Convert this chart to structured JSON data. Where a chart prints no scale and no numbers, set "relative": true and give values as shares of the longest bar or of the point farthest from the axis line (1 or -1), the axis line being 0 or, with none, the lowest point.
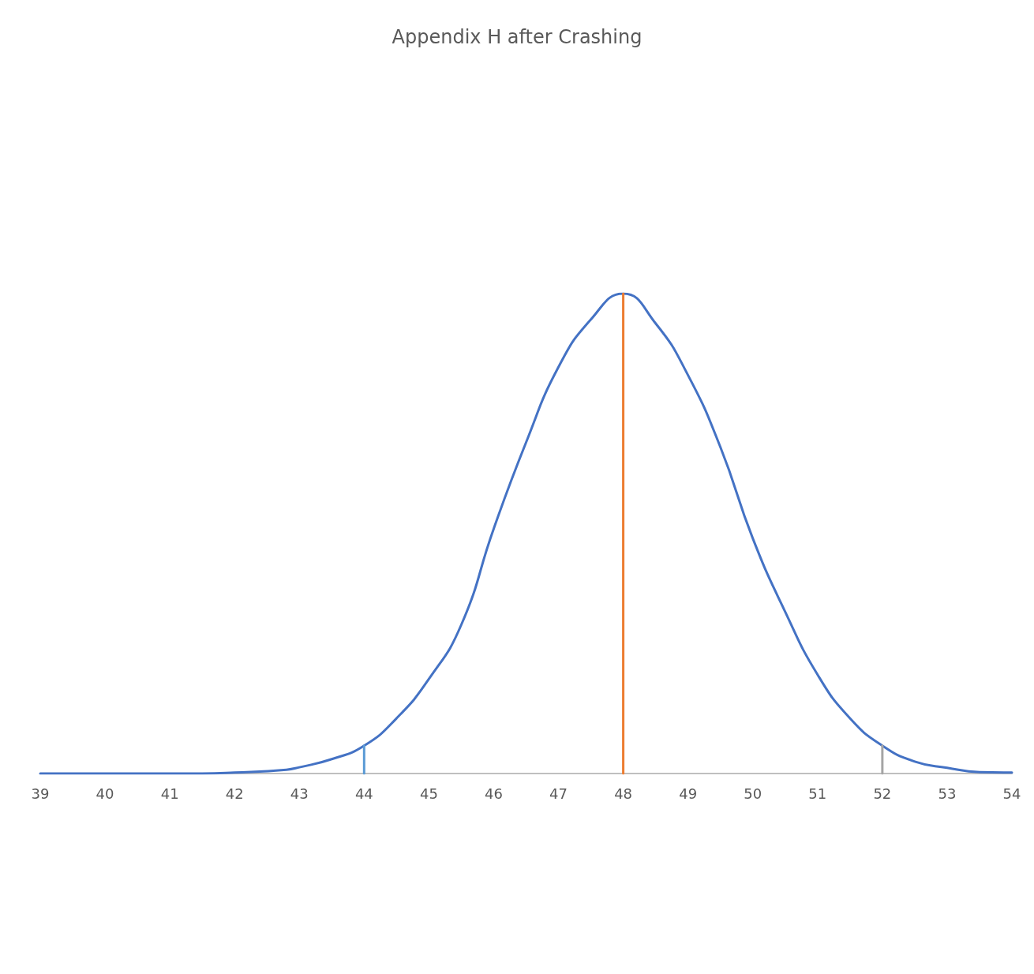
{
  "chart_data": {
    "type": "line",
    "title": "Appendix H after Crashing",
    "relative": true,
    "xlim": [
      39,
      54
    ],
    "xticks": [
      39,
      40,
      41,
      42,
      43,
      44,
      45,
      46,
      47,
      48,
      49,
      50,
      51,
      52,
      53,
      54
    ],
    "grid": false,
    "marker": "none",
    "line_style": "solid",
    "series": [
      {
        "color": "#4472c4",
        "x": [
          39,
          41.5,
          42,
          42.8,
          43,
          43.5,
          44,
          44.5,
          45,
          45.5,
          46,
          46.5,
          47,
          47.5,
          48,
          48.5,
          49,
          49.5,
          50,
          50.5,
          51,
          51.5,
          52,
          52.5,
          53,
          53.5,
          54
        ],
        "values": [
          0,
          0,
          0.002,
          0.008,
          0.013,
          0.03,
          0.058,
          0.115,
          0.197,
          0.31,
          0.51,
          0.69,
          0.847,
          0.946,
          1,
          0.938,
          0.83,
          0.68,
          0.49,
          0.337,
          0.206,
          0.115,
          0.058,
          0.025,
          0.012,
          0.003,
          0.002
        ]
      },
      {
        "color": "#5b9bd5",
        "x": [
          44,
          44
        ],
        "values": [
          0,
          0.058
        ]
      },
      {
        "color": "#ed7d31",
        "x": [
          48,
          48
        ],
        "values": [
          0,
          1
        ]
      },
      {
        "color": "#a5a5a5",
        "x": [
          52,
          52
        ],
        "values": [
          0,
          0.058
        ]
      }
    ]
  }
}
